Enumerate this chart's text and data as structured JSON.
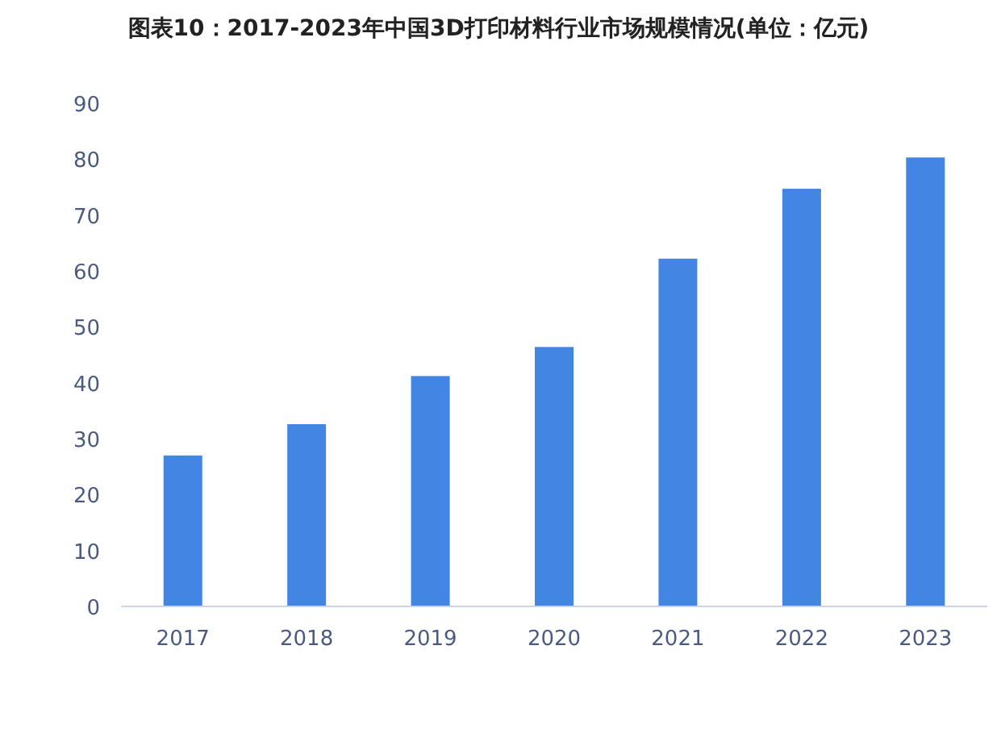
{
  "chart_data": {
    "type": "bar",
    "title": "图表10：2017-2023年中国3D打印材料行业市场规模情况(单位：亿元)",
    "categories": [
      "2017",
      "2018",
      "2019",
      "2020",
      "2021",
      "2022",
      "2023"
    ],
    "values": [
      27,
      32.6,
      41.2,
      46.4,
      62.2,
      74.7,
      80.3
    ],
    "color": "#4285e3",
    "ylim": [
      0,
      90
    ],
    "yticks": [
      0,
      10,
      20,
      30,
      40,
      50,
      60,
      70,
      80,
      90
    ]
  }
}
